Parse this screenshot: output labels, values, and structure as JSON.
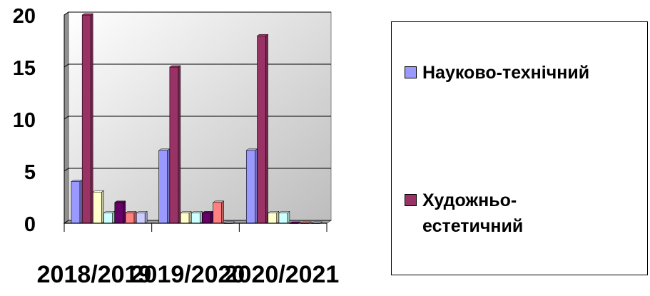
{
  "chart_data": {
    "type": "bar",
    "categories": [
      "2018/2019",
      "2019/2020",
      "2020/2021"
    ],
    "yticks": [
      "0",
      "5",
      "10",
      "15",
      "20"
    ],
    "ylim": [
      0,
      20
    ],
    "grid": true,
    "legend_position": "right",
    "series": [
      {
        "name": "Науково-технічний",
        "color": "#9999ff",
        "values": [
          4,
          7,
          7
        ]
      },
      {
        "name": "Художньо-естетичний",
        "color": "#993366",
        "values": [
          20,
          15,
          18
        ]
      },
      {
        "color": "#ffffcc",
        "values": [
          3,
          1,
          1
        ]
      },
      {
        "color": "#ccffff",
        "values": [
          1,
          1,
          1
        ]
      },
      {
        "color": "#660066",
        "values": [
          2,
          1,
          0
        ]
      },
      {
        "color": "#ff8080",
        "values": [
          1,
          2,
          0
        ]
      },
      {
        "color": "#ccccff",
        "values": [
          1,
          0,
          0
        ]
      }
    ],
    "plot_background": "#c0c0c0",
    "legend_labels": [
      "Науково-технічний",
      "Художньо-естетичний"
    ],
    "legend_lines": [
      [
        "Науково-технічний"
      ],
      [
        "Художньо-",
        "естетичний"
      ]
    ]
  }
}
